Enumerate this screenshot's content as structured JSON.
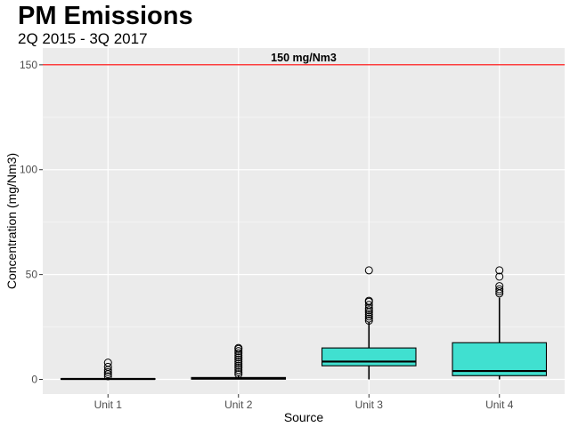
{
  "chart_data": {
    "type": "boxplot",
    "title": "PM Emissions",
    "subtitle": "2Q 2015 - 3Q 2017",
    "xlabel": "Source",
    "ylabel": "Concentration (mg/Nm3)",
    "ylim": [
      -7,
      158
    ],
    "yticks": [
      0,
      50,
      100,
      150
    ],
    "grid": true,
    "categories": [
      "Unit 1",
      "Unit 2",
      "Unit 3",
      "Unit 4"
    ],
    "boxes": [
      {
        "label": "Unit 1",
        "min": 0,
        "q1": 0,
        "median": 0.2,
        "q3": 0.4,
        "max": 0.8,
        "outliers": [
          1.5,
          2.5,
          3.5,
          4.5,
          6,
          8
        ]
      },
      {
        "label": "Unit 2",
        "min": 0,
        "q1": 0.1,
        "median": 0.5,
        "q3": 0.9,
        "max": 2,
        "outliers": [
          2.5,
          3.5,
          4.5,
          5.5,
          6.5,
          7.5,
          8.5,
          9.5,
          10.5,
          11.5,
          12.5,
          13.5,
          14.5,
          15
        ]
      },
      {
        "label": "Unit 3",
        "min": 0,
        "q1": 6.5,
        "median": 8.5,
        "q3": 15,
        "max": 27.5,
        "outliers": [
          28,
          29,
          30,
          31,
          32,
          33,
          34,
          35.5,
          37,
          37.5,
          52
        ]
      },
      {
        "label": "Unit 4",
        "min": 0,
        "q1": 1.8,
        "median": 4,
        "q3": 17.5,
        "max": 39,
        "outliers": [
          41,
          42,
          43,
          44.5,
          49,
          52
        ]
      }
    ],
    "fill_color": "#40e0d0",
    "reference_line": {
      "value": 150,
      "label": "150 mg/Nm3",
      "color": "#ff0000"
    }
  }
}
